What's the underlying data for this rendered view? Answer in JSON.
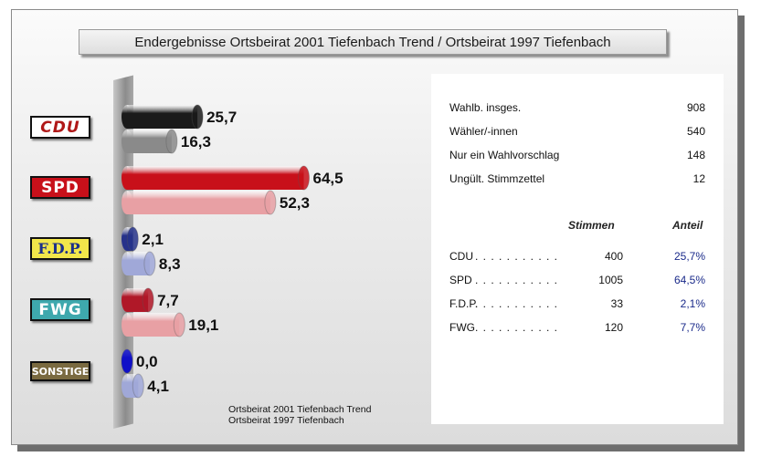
{
  "title": "Endergebnisse Ortsbeirat 2001 Tiefenbach Trend / Ortsbeirat 1997 Tiefenbach",
  "chart_data": {
    "type": "bar",
    "orientation": "horizontal",
    "categories": [
      "CDU",
      "SPD",
      "F.D.P.",
      "FWG",
      "SONSTIGE"
    ],
    "series": [
      {
        "name": "Ortsbeirat 2001 Tiefenbach Trend",
        "values": [
          25.7,
          64.5,
          2.1,
          7.7,
          0.0
        ],
        "value_labels": [
          "25,7",
          "64,5",
          "2,1",
          "7,7",
          "0,0"
        ]
      },
      {
        "name": "Ortsbeirat 1997 Tiefenbach",
        "values": [
          16.3,
          52.3,
          8.3,
          19.1,
          4.1
        ],
        "value_labels": [
          "16,3",
          "52,3",
          "8,3",
          "19,1",
          "4,1"
        ]
      }
    ],
    "colors_2001": [
      "#1a1a1a",
      "#c8101a",
      "#26328a",
      "#b01828",
      "#1010c8"
    ],
    "colors_1997": [
      "#8a8a8a",
      "#e8a0a4",
      "#a0a8d8",
      "#e8a0a4",
      "#a0a8d8"
    ],
    "xlim": [
      0,
      70
    ],
    "grid": false,
    "legend_position": "bottom"
  },
  "party_logos": [
    "CDU",
    "SPD",
    "F.D.P.",
    "FWG",
    "SONSTIGE"
  ],
  "legend": {
    "line1": "Ortsbeirat 2001 Tiefenbach Trend",
    "line2": "Ortsbeirat 1997 Tiefenbach"
  },
  "stats": {
    "rows": [
      {
        "label": "Wahlb. insges.",
        "value": "908"
      },
      {
        "label": "Wähler/-innen",
        "value": "540"
      },
      {
        "label": "Nur ein  Wahlvorschlag",
        "value": "148"
      },
      {
        "label": "Ungült. Stimmzettel",
        "value": "12"
      }
    ],
    "header_votes": "Stimmen",
    "header_share": "Anteil",
    "results": [
      {
        "name": "CDU",
        "dots": ". . . . . . . . . . .",
        "votes": "400",
        "share": "25,7%"
      },
      {
        "name": "SPD",
        "dots": ". . . . . . . . . . .",
        "votes": "1005",
        "share": "64,5%"
      },
      {
        "name": "F.D.P.",
        "dots": ". . . . . . . . . . .",
        "votes": "33",
        "share": "2,1%"
      },
      {
        "name": "FWG",
        "dots": ". . . . . . . . . . .",
        "votes": "120",
        "share": "7,7%"
      }
    ]
  }
}
